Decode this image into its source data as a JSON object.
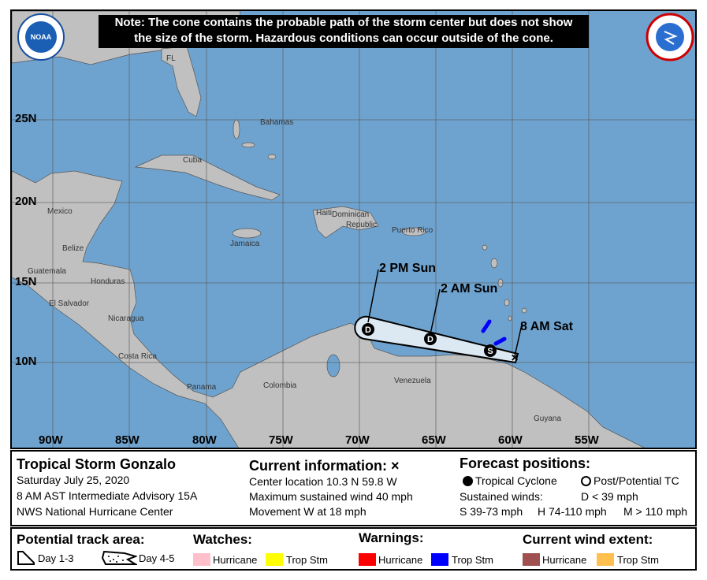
{
  "note": {
    "line1": "Note: The cone contains the probable path of the storm center but does not show",
    "line2": "the size of the storm. Hazardous conditions can occur outside of the cone."
  },
  "logos": {
    "left": "NOAA",
    "right": "NATIONAL WEATHER SERVICE"
  },
  "lat_ticks": [
    "25N",
    "20N",
    "15N",
    "10N"
  ],
  "lon_ticks": [
    "90W",
    "85W",
    "80W",
    "75W",
    "70W",
    "65W",
    "60W",
    "55W"
  ],
  "places": [
    "FL",
    "Bahamas",
    "Cuba",
    "Mexico",
    "Haiti",
    "Dominican",
    "Republic",
    "Puerto Rico",
    "Jamaica",
    "Belize",
    "Guatemala",
    "Honduras",
    "El Salvador",
    "Nicaragua",
    "Costa Rica",
    "Panama",
    "Colombia",
    "Venezuela",
    "Guyana"
  ],
  "track": {
    "points": [
      {
        "label": "8 AM Sat",
        "symbol": "X"
      },
      {
        "label": "",
        "symbol": "S"
      },
      {
        "label": "2 AM Sun",
        "symbol": "D"
      },
      {
        "label": "2 PM Sun",
        "symbol": "D"
      }
    ]
  },
  "info": {
    "storm": "Tropical Storm Gonzalo",
    "date": "Saturday July 25, 2020",
    "advisory": "8 AM AST Intermediate Advisory 15A",
    "center": "NWS National Hurricane Center",
    "current_title": "Current information: ×",
    "location": "Center location 10.3 N 59.8 W",
    "wind": "Maximum sustained wind 40 mph",
    "movement": "Movement W at 18 mph",
    "forecast_title": "Forecast positions:",
    "tc": "Tropical Cyclone",
    "ptc": "Post/Potential TC",
    "sustained": "Sustained winds:",
    "d": "D < 39 mph",
    "s": "S 39-73 mph",
    "hh": "H 74-110 mph",
    "m": "M > 110 mph"
  },
  "legend": {
    "track_title": "Potential track area:",
    "day13": "Day 1-3",
    "day45": "Day 4-5",
    "watches_title": "Watches:",
    "warnings_title": "Warnings:",
    "wind_title": "Current wind extent:",
    "hurricane": "Hurricane",
    "tropstm": "Trop Stm",
    "colors": {
      "hurricane_watch": "#ffc0cb",
      "tropstm_watch": "#ffff00",
      "hurricane_warning": "#ff0000",
      "tropstm_warning": "#0000ff",
      "hurricane_wind": "#a05050",
      "tropstm_wind": "#ffc050"
    }
  }
}
